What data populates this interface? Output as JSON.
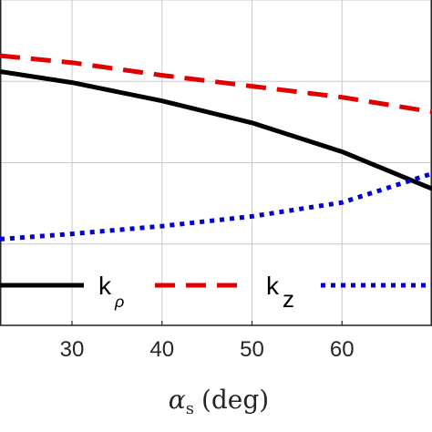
{
  "chart_data": {
    "type": "line",
    "xlabel": {
      "symbol": "α",
      "subscript": "s",
      "unit": "(deg)"
    },
    "ylabel": "",
    "title": "",
    "xlim": [
      22,
      70
    ],
    "ylim": [
      0.2,
      1.0
    ],
    "grid": true,
    "x_ticks": [
      30,
      40,
      50,
      60
    ],
    "x_tick_labels": [
      "30",
      "40",
      "50",
      "60"
    ],
    "y_ticks": [
      0.4,
      0.6,
      0.8,
      1.0
    ],
    "legend_position": "bottom",
    "series": [
      {
        "name": "k_ρ",
        "label_main": "k",
        "label_sub": "ρ",
        "color": "#000000",
        "style": "solid",
        "x": [
          22,
          30,
          40,
          50,
          60,
          70
        ],
        "y": [
          0.824,
          0.797,
          0.752,
          0.698,
          0.627,
          0.536
        ]
      },
      {
        "name": "k_z",
        "label_main": "k",
        "label_sub": "z",
        "color": "#e00000",
        "style": "dashed",
        "x": [
          22,
          30,
          40,
          50,
          60,
          70
        ],
        "y": [
          0.863,
          0.846,
          0.815,
          0.788,
          0.761,
          0.725
        ]
      },
      {
        "name": "",
        "label_main": "",
        "label_sub": "",
        "color": "#0000d0",
        "style": "dotted",
        "x": [
          22,
          30,
          40,
          50,
          60,
          70
        ],
        "y": [
          0.412,
          0.425,
          0.444,
          0.468,
          0.502,
          0.573
        ]
      }
    ]
  }
}
